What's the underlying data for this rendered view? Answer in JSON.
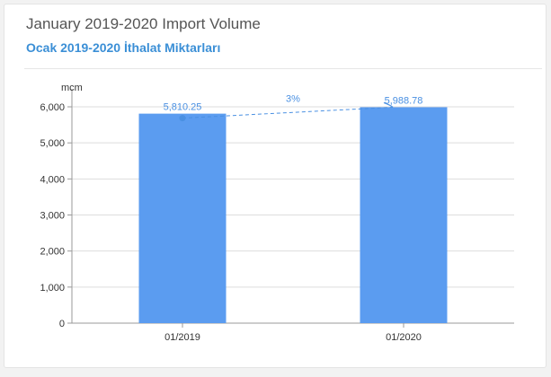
{
  "header": {
    "title": "January 2019-2020 Import Volume",
    "subtitle": "Ocak 2019-2020 İthalat Miktarları"
  },
  "colors": {
    "bar": "#5b9cf0",
    "accent": "#3b8fd6",
    "label": "#4a90e2",
    "axis": "#333333",
    "grid": "#dddddd"
  },
  "chart_data": {
    "type": "bar",
    "categories": [
      "01/2019",
      "01/2020"
    ],
    "values": [
      5810.25,
      5988.78
    ],
    "value_labels": [
      "5,810.25",
      "5,988.78"
    ],
    "ylabel": "mcm",
    "ylim": [
      0,
      6000
    ],
    "yticks": [
      0,
      1000,
      2000,
      3000,
      4000,
      5000,
      6000
    ],
    "ytick_labels": [
      "0",
      "1,000",
      "2,000",
      "3,000",
      "4,000",
      "5,000",
      "6,000"
    ],
    "grid": true,
    "annotation": {
      "type": "dashed-trend",
      "label": "3%"
    }
  }
}
